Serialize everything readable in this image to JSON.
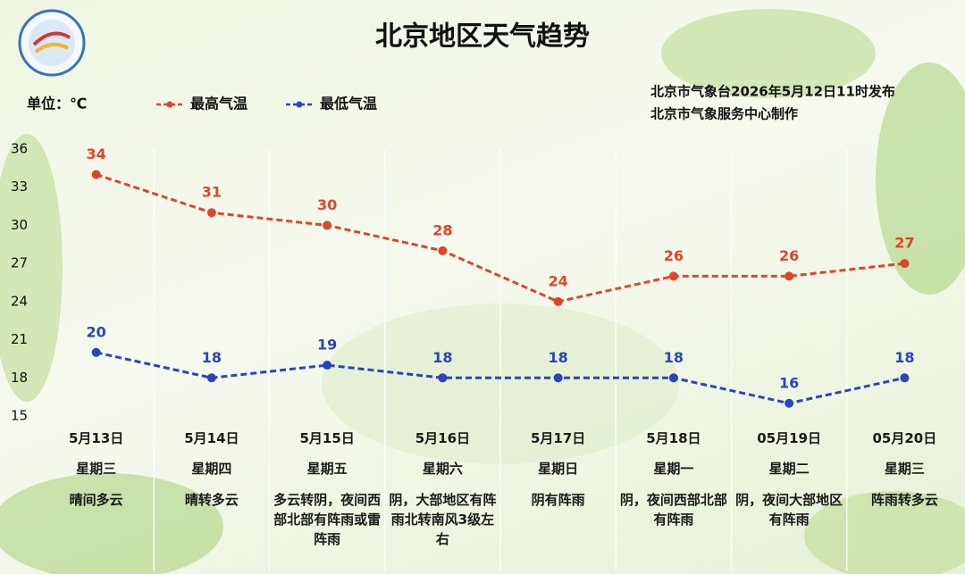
{
  "chart_data": {
    "type": "line",
    "title": "北京地区天气趋势",
    "unit_label": "单位：℃",
    "source": [
      "北京市气象台2026年5月12日11时发布",
      "北京市气象服务中心制作"
    ],
    "categories": [
      "5月13日",
      "5月14日",
      "5月15日",
      "5月16日",
      "5月17日",
      "5月18日",
      "05月19日",
      "05月20日"
    ],
    "weekdays": [
      "星期三",
      "星期四",
      "星期五",
      "星期六",
      "星期日",
      "星期一",
      "星期二",
      "星期三"
    ],
    "weather": [
      "晴间多云",
      "晴转多云",
      "多云转阴，夜间西部北部有阵雨或雷阵雨",
      "阴，大部地区有阵雨北转南风3级左右",
      "阴有阵雨",
      "阴，夜间西部北部有阵雨",
      "阴，夜间大部地区有阵雨",
      "阵雨转多云"
    ],
    "series": [
      {
        "name": "最高气温",
        "color": "#e0452c",
        "values": [
          34,
          31,
          30,
          28,
          24,
          26,
          26,
          27
        ]
      },
      {
        "name": "最低气温",
        "color": "#2a44bf",
        "values": [
          20,
          18,
          19,
          18,
          18,
          18,
          16,
          18
        ]
      }
    ],
    "ylim": [
      15,
      36
    ],
    "yticks": [
      15,
      18,
      21,
      24,
      27,
      30,
      33,
      36
    ],
    "grid": false
  }
}
